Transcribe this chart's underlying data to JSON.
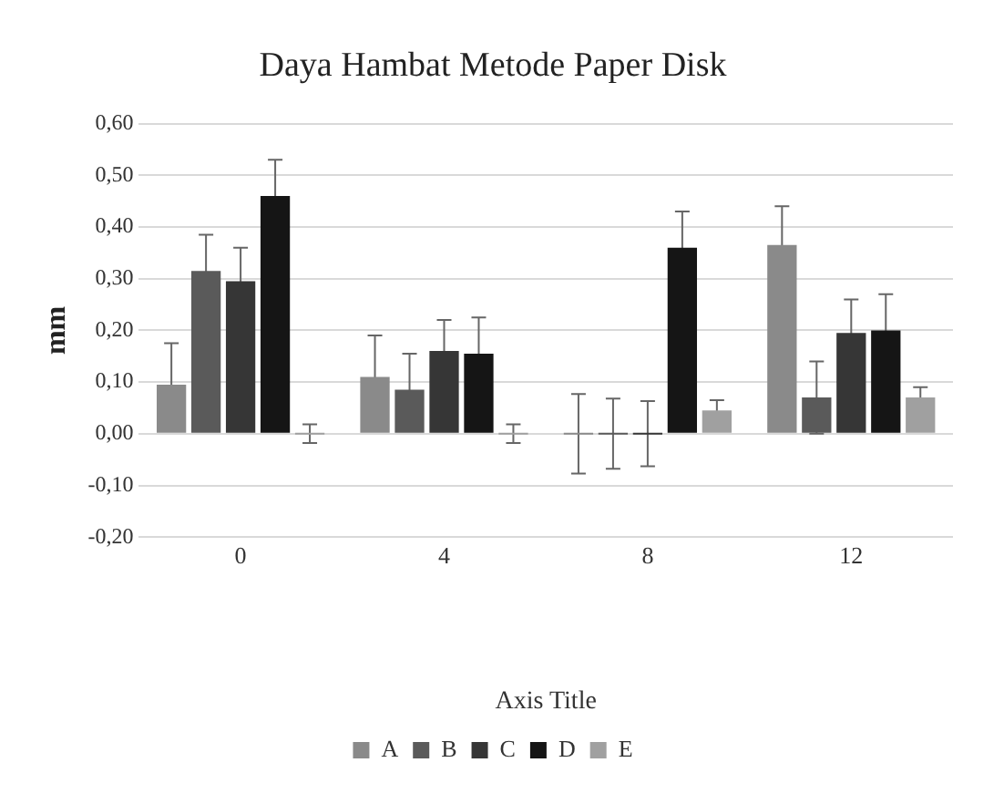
{
  "chart_data": {
    "type": "bar",
    "title": "Daya Hambat Metode Paper Disk",
    "xlabel": "Axis Title",
    "ylabel": "mm",
    "categories": [
      "0",
      "4",
      "8",
      "12"
    ],
    "series": [
      {
        "name": "A",
        "color": "#8a8a8a",
        "values": [
          0.095,
          0.11,
          0,
          0.365
        ],
        "errors": [
          0.08,
          0.08,
          0.077,
          0.075
        ]
      },
      {
        "name": "B",
        "color": "#5a5a5a",
        "values": [
          0.315,
          0.085,
          0,
          0.07
        ],
        "errors": [
          0.07,
          0.07,
          0.068,
          0.07
        ]
      },
      {
        "name": "C",
        "color": "#363636",
        "values": [
          0.295,
          0.16,
          0,
          0.195
        ],
        "errors": [
          0.065,
          0.06,
          0.063,
          0.065
        ]
      },
      {
        "name": "D",
        "color": "#151515",
        "values": [
          0.46,
          0.155,
          0.36,
          0.2
        ],
        "errors": [
          0.07,
          0.07,
          0.07,
          0.07
        ]
      },
      {
        "name": "E",
        "color": "#a0a0a0",
        "values": [
          0,
          0,
          0.045,
          0.07
        ],
        "errors": [
          0.018,
          0.018,
          0.02,
          0.02
        ]
      }
    ],
    "ylim": [
      -0.2,
      0.6
    ],
    "yticks": [
      {
        "value": -0.2,
        "label": "-0,20"
      },
      {
        "value": -0.1,
        "label": "-0,10"
      },
      {
        "value": 0,
        "label": "0,00"
      },
      {
        "value": 0.1,
        "label": "0,10"
      },
      {
        "value": 0.2,
        "label": "0,20"
      },
      {
        "value": 0.3,
        "label": "0,30"
      },
      {
        "value": 0.4,
        "label": "0,40"
      },
      {
        "value": 0.5,
        "label": "0,50"
      },
      {
        "value": 0.6,
        "label": "0,60"
      }
    ],
    "grid": "y",
    "legend": "bottom"
  }
}
